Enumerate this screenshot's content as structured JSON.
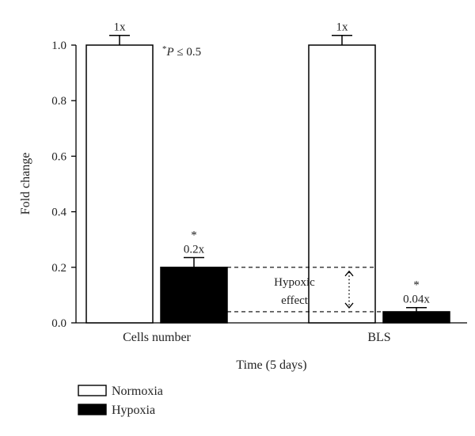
{
  "chart_data": {
    "type": "bar",
    "categories": [
      "Cells number",
      "BLS"
    ],
    "series": [
      {
        "name": "Normoxia",
        "color": "#ffffff",
        "values": [
          1.0,
          1.0
        ],
        "errors": [
          0.035,
          0.035
        ],
        "labels": [
          "1x",
          "1x"
        ]
      },
      {
        "name": "Hypoxia",
        "color": "#000000",
        "values": [
          0.2,
          0.04
        ],
        "errors": [
          0.035,
          0.015
        ],
        "labels": [
          "0.2x",
          "0.04x"
        ]
      }
    ],
    "ylabel": "Fold change",
    "xlabel": "Time (5 days)",
    "ylim": [
      0,
      1.0
    ],
    "yticks": [
      "0.0",
      "0.2",
      "0.4",
      "0.6",
      "0.8",
      "1.0"
    ],
    "significance_marker": "*",
    "significance_note": {
      "star": "*",
      "italic": "P",
      "rest": " ≤ 0.5"
    },
    "annotation": {
      "line1": "Hypoxic",
      "line2": "effect",
      "from": 0.2,
      "to": 0.04
    },
    "legend_position": "bottom-left",
    "grid": false
  }
}
